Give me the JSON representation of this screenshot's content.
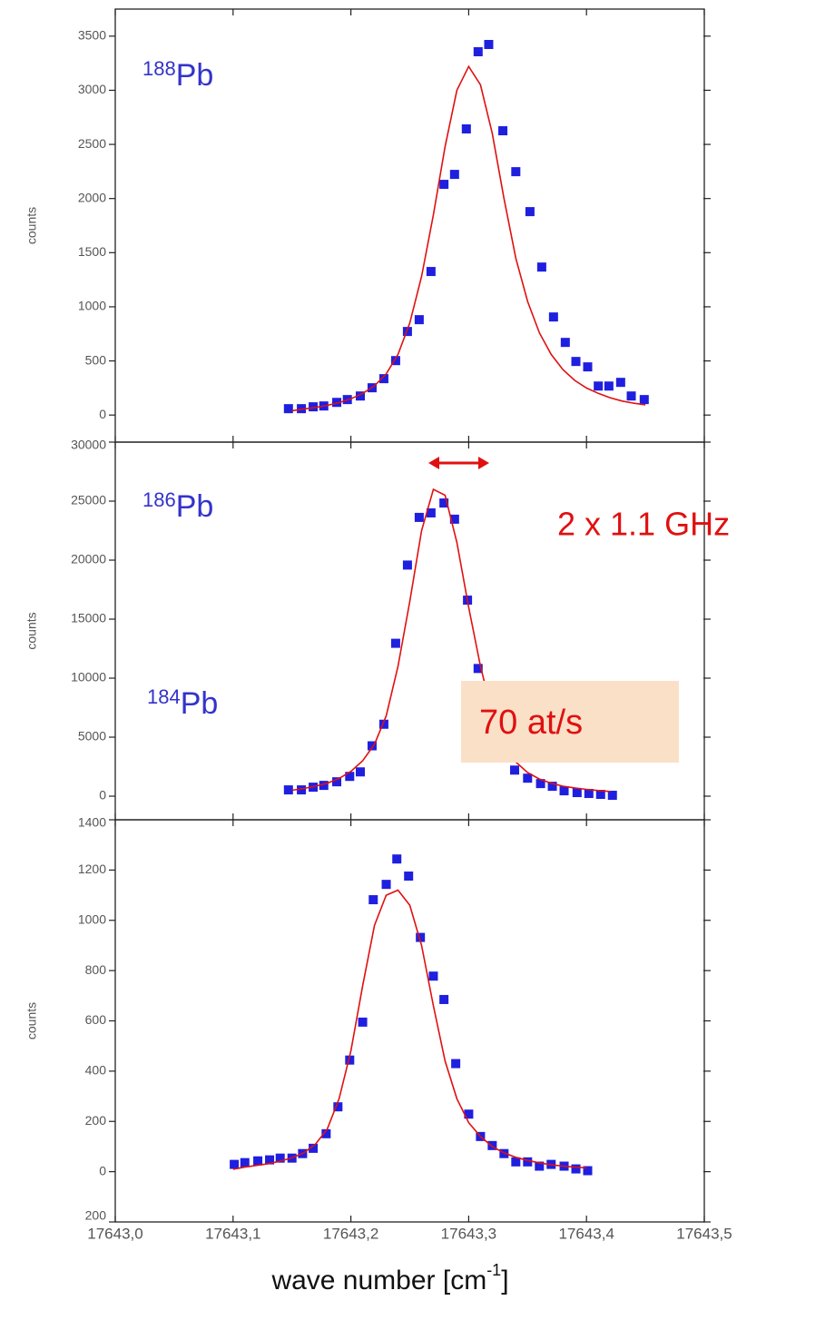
{
  "chart_data": [
    {
      "type": "scatter",
      "annotation": {
        "sup": "188",
        "text": "Pb"
      },
      "ylabel": "counts",
      "xlim": [
        17643.0,
        17643.5
      ],
      "ylim": [
        -250,
        3750
      ],
      "yticks": [
        0,
        500,
        1000,
        1500,
        2000,
        2500,
        3000,
        3500
      ],
      "series": [
        {
          "style": "markers",
          "color": "#1f1fe0",
          "x": [
            17643.147,
            17643.158,
            17643.168,
            17643.177,
            17643.188,
            17643.197,
            17643.208,
            17643.218,
            17643.228,
            17643.238,
            17643.248,
            17643.258,
            17643.268,
            17643.279,
            17643.288,
            17643.298,
            17643.308,
            17643.317,
            17643.329,
            17643.34,
            17643.352,
            17643.362,
            17643.372,
            17643.382,
            17643.391,
            17643.401,
            17643.41,
            17643.419,
            17643.429,
            17643.438,
            17643.449
          ],
          "values": [
            59,
            59,
            76,
            84,
            117,
            143,
            176,
            252,
            336,
            503,
            772,
            881,
            1326,
            2131,
            2223,
            2643,
            3356,
            3423,
            2626,
            2248,
            1879,
            1367,
            906,
            671,
            495,
            445,
            268,
            268,
            302,
            176,
            143
          ]
        },
        {
          "style": "line",
          "color": "#e01010",
          "x": [
            17643.15,
            17643.16,
            17643.17,
            17643.18,
            17643.19,
            17643.2,
            17643.21,
            17643.22,
            17643.23,
            17643.24,
            17643.25,
            17643.26,
            17643.27,
            17643.28,
            17643.29,
            17643.3,
            17643.31,
            17643.32,
            17643.33,
            17643.34,
            17643.35,
            17643.36,
            17643.37,
            17643.38,
            17643.39,
            17643.4,
            17643.41,
            17643.42,
            17643.43,
            17643.44,
            17643.45
          ],
          "values": [
            40,
            55,
            70,
            90,
            115,
            150,
            200,
            270,
            380,
            560,
            850,
            1280,
            1850,
            2480,
            3000,
            3220,
            3050,
            2600,
            2000,
            1450,
            1050,
            760,
            560,
            420,
            320,
            250,
            200,
            160,
            130,
            110,
            95
          ]
        }
      ]
    },
    {
      "type": "scatter",
      "annotation": {
        "sup": "186",
        "text": "Pb"
      },
      "ylabel": "counts",
      "note": "2 x 1.1 GHz",
      "xlim": [
        17643.0,
        17643.5
      ],
      "ylim": [
        -2000,
        30000
      ],
      "yticks": [
        0,
        5000,
        10000,
        15000,
        20000,
        25000,
        30000
      ],
      "series": [
        {
          "style": "markers",
          "color": "#1f1fe0",
          "x": [
            17643.147,
            17643.158,
            17643.168,
            17643.177,
            17643.188,
            17643.199,
            17643.208,
            17643.218,
            17643.228,
            17643.238,
            17643.248,
            17643.258,
            17643.268,
            17643.279,
            17643.288,
            17643.299,
            17643.308,
            17643.318,
            17643.329,
            17643.339,
            17643.35,
            17643.361,
            17643.371,
            17643.381,
            17643.392,
            17643.402,
            17643.412,
            17643.422
          ],
          "values": [
            533,
            533,
            762,
            914,
            1219,
            1676,
            2057,
            4267,
            6096,
            12954,
            19583,
            23622,
            24003,
            24841,
            23470,
            16612,
            10820,
            7010,
            4343,
            2210,
            1524,
            1067,
            838,
            457,
            305,
            229,
            152,
            76
          ]
        },
        {
          "style": "line",
          "color": "#e01010",
          "x": [
            17643.15,
            17643.16,
            17643.17,
            17643.18,
            17643.19,
            17643.2,
            17643.21,
            17643.22,
            17643.23,
            17643.24,
            17643.25,
            17643.26,
            17643.27,
            17643.28,
            17643.29,
            17643.3,
            17643.31,
            17643.32,
            17643.33,
            17643.34,
            17643.35,
            17643.36,
            17643.37,
            17643.38,
            17643.39,
            17643.4,
            17643.41,
            17643.42
          ],
          "values": [
            500,
            650,
            850,
            1100,
            1500,
            2100,
            3000,
            4400,
            6800,
            11000,
            16500,
            22500,
            26000,
            25500,
            21500,
            16000,
            11000,
            7000,
            4400,
            2900,
            2000,
            1450,
            1100,
            850,
            700,
            580,
            480,
            400
          ]
        }
      ]
    },
    {
      "type": "scatter",
      "annotation": {
        "sup": "184",
        "text": "Pb"
      },
      "ylabel": "counts",
      "note": "70 at/s",
      "xlabel": {
        "text": "wave number [cm",
        "sup": "-1",
        "end": "]"
      },
      "xlim": [
        17643.0,
        17643.5
      ],
      "ylim": [
        -200,
        1400
      ],
      "xticks": [
        {
          "value": 17643.0,
          "label": "17643,0"
        },
        {
          "value": 17643.1,
          "label": "17643,1"
        },
        {
          "value": 17643.2,
          "label": "17643,2"
        },
        {
          "value": 17643.3,
          "label": "17643,3"
        },
        {
          "value": 17643.4,
          "label": "17643,4"
        },
        {
          "value": 17643.5,
          "label": "17643,5"
        }
      ],
      "yticks": [
        {
          "value": -200,
          "label": "200"
        },
        0,
        200,
        400,
        600,
        800,
        1000,
        1200,
        1400
      ],
      "series": [
        {
          "style": "markers",
          "color": "#1f1fe0",
          "x": [
            17643.101,
            17643.11,
            17643.121,
            17643.131,
            17643.14,
            17643.15,
            17643.159,
            17643.168,
            17643.179,
            17643.189,
            17643.199,
            17643.21,
            17643.219,
            17643.23,
            17643.239,
            17643.249,
            17643.259,
            17643.27,
            17643.279,
            17643.289,
            17643.3,
            17643.31,
            17643.32,
            17643.33,
            17643.34,
            17643.35,
            17643.36,
            17643.37,
            17643.381,
            17643.391,
            17643.401
          ],
          "values": [
            29,
            36,
            43,
            47,
            54,
            54,
            72,
            93,
            151,
            258,
            444,
            595,
            1082,
            1143,
            1244,
            1176,
            932,
            778,
            685,
            430,
            229,
            140,
            104,
            72,
            39,
            39,
            22,
            29,
            22,
            11,
            4
          ]
        },
        {
          "style": "line",
          "color": "#e01010",
          "x": [
            17643.1,
            17643.11,
            17643.12,
            17643.13,
            17643.14,
            17643.15,
            17643.16,
            17643.17,
            17643.18,
            17643.19,
            17643.2,
            17643.21,
            17643.22,
            17643.23,
            17643.24,
            17643.25,
            17643.26,
            17643.27,
            17643.28,
            17643.29,
            17643.3,
            17643.31,
            17643.32,
            17643.33,
            17643.34,
            17643.35,
            17643.36,
            17643.37,
            17643.38,
            17643.39,
            17643.4
          ],
          "values": [
            10,
            18,
            25,
            32,
            42,
            55,
            75,
            110,
            170,
            290,
            480,
            740,
            980,
            1100,
            1120,
            1060,
            900,
            660,
            440,
            290,
            195,
            140,
            100,
            75,
            57,
            45,
            35,
            28,
            22,
            18,
            15
          ]
        }
      ]
    }
  ]
}
